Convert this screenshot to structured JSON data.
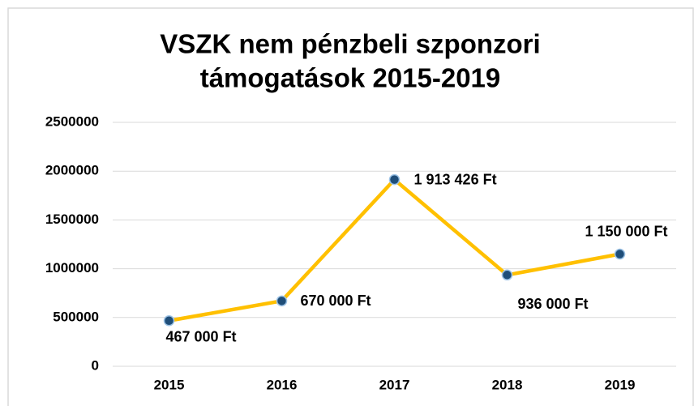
{
  "chart_data": {
    "type": "line",
    "title": [
      "VSZK nem pénzbeli szponzori",
      "támogatások 2015-2019"
    ],
    "categories": [
      "2015",
      "2016",
      "2017",
      "2018",
      "2019"
    ],
    "series": [
      {
        "color": "#FFC000",
        "marker_color": "#1F4E79",
        "values": [
          467000,
          670000,
          1913426,
          936000,
          1150000
        ],
        "value_labels": [
          "467 000 Ft",
          "670 000 Ft",
          "1 913 426 Ft",
          "936 000 Ft",
          "1 150 000 Ft"
        ]
      }
    ],
    "ylim": [
      0,
      2500000
    ],
    "yticks": [
      0,
      500000,
      1000000,
      1500000,
      2000000,
      2500000
    ],
    "grid": true
  }
}
